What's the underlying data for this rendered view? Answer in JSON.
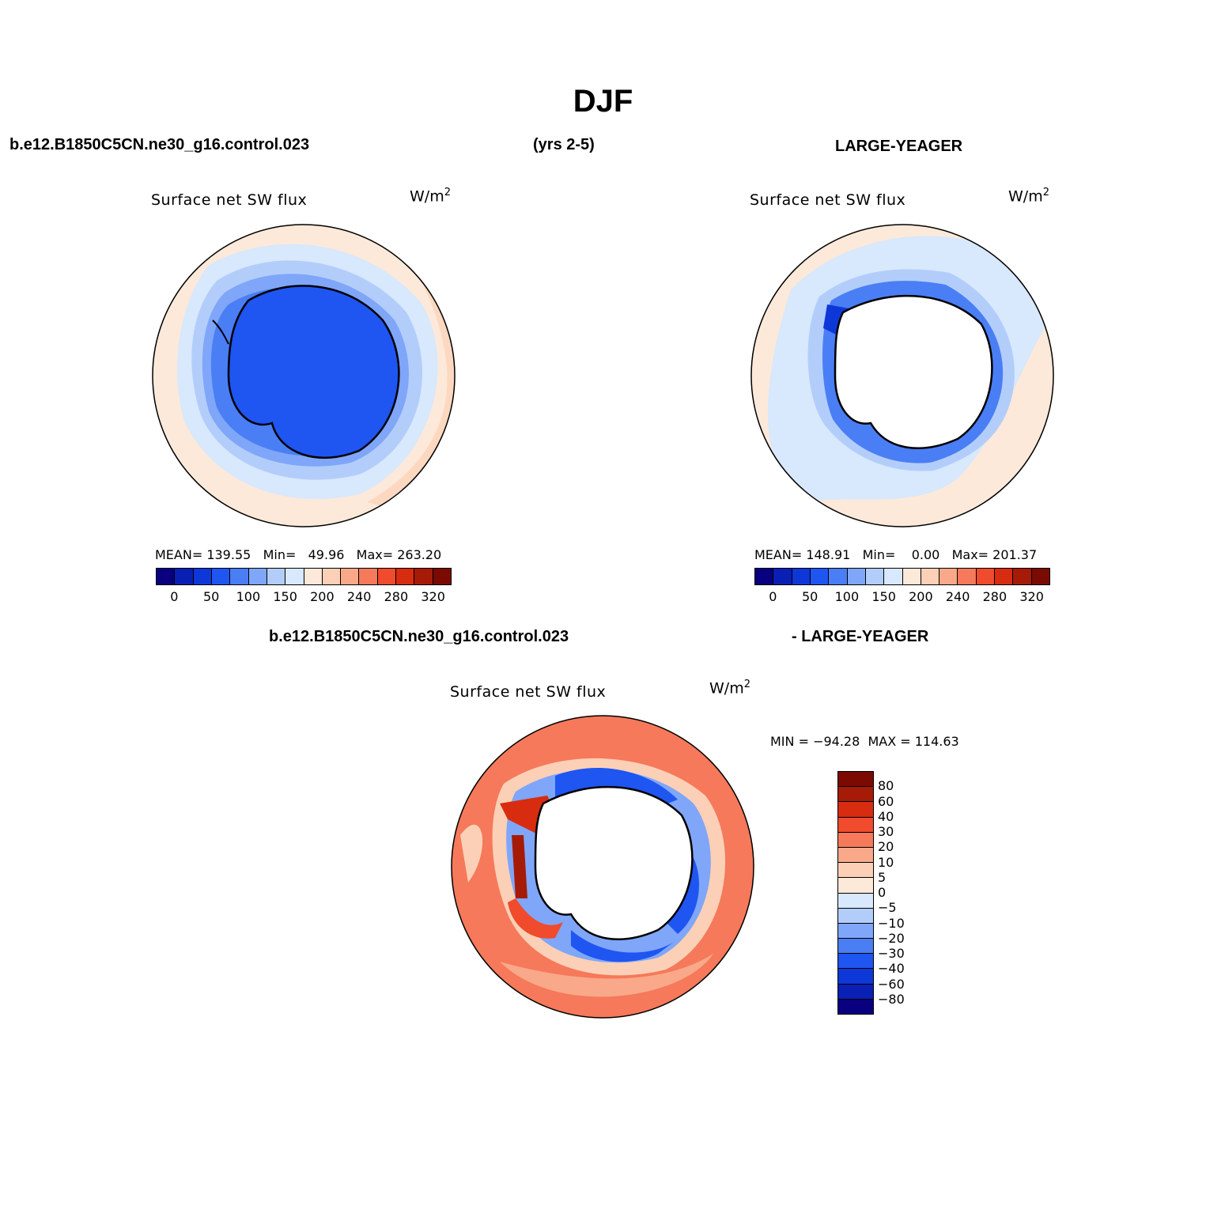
{
  "title": "DJF",
  "header": {
    "case_left": "b.e12.B1850C5CN.ne30_g16.control.023",
    "years": "(yrs 2-5)",
    "case_right": "LARGE-YEAGER"
  },
  "diff_header": {
    "left": "b.e12.B1850C5CN.ne30_g16.control.023",
    "right": "- LARGE-YEAGER"
  },
  "panels": [
    {
      "title": "Surface net SW flux",
      "units": "W/m",
      "units_sup": "2",
      "stats": "MEAN= 139.55   Min=   49.96   Max= 263.20",
      "ticks": [
        "0",
        "50",
        "100",
        "150",
        "200",
        "240",
        "280",
        "320"
      ]
    },
    {
      "title": "Surface net SW flux",
      "units": "W/m",
      "units_sup": "2",
      "stats": "MEAN= 148.91   Min=    0.00   Max= 201.37",
      "ticks": [
        "0",
        "50",
        "100",
        "150",
        "200",
        "240",
        "280",
        "320"
      ]
    },
    {
      "title": "Surface net SW flux",
      "units": "W/m",
      "units_sup": "2",
      "stats": "MIN = −94.28  MAX = 114.63",
      "ticks": [
        "80",
        "60",
        "40",
        "30",
        "20",
        "10",
        "5",
        "0",
        "−5",
        "−10",
        "−20",
        "−30",
        "−40",
        "−60",
        "−80"
      ]
    }
  ],
  "colors": {
    "abs_scale": [
      "#08007f",
      "#0a1fb4",
      "#0e37d8",
      "#1f55f0",
      "#4a7ef5",
      "#7fa6f8",
      "#b3cdfb",
      "#d8e8fd",
      "#fde9d9",
      "#fcd0b6",
      "#f9a98a",
      "#f5795a",
      "#ef4b2c",
      "#d72c10",
      "#a61b07",
      "#7a0a02"
    ],
    "diff_scale": [
      "#7a0a02",
      "#a61b07",
      "#d72c10",
      "#ef4b2c",
      "#f5795a",
      "#f9a98a",
      "#fcd0b6",
      "#fde9d9",
      "#d8e8fd",
      "#b3cdfb",
      "#7fa6f8",
      "#4a7ef5",
      "#1f55f0",
      "#0e37d8",
      "#0a1fb4",
      "#08007f"
    ]
  }
}
